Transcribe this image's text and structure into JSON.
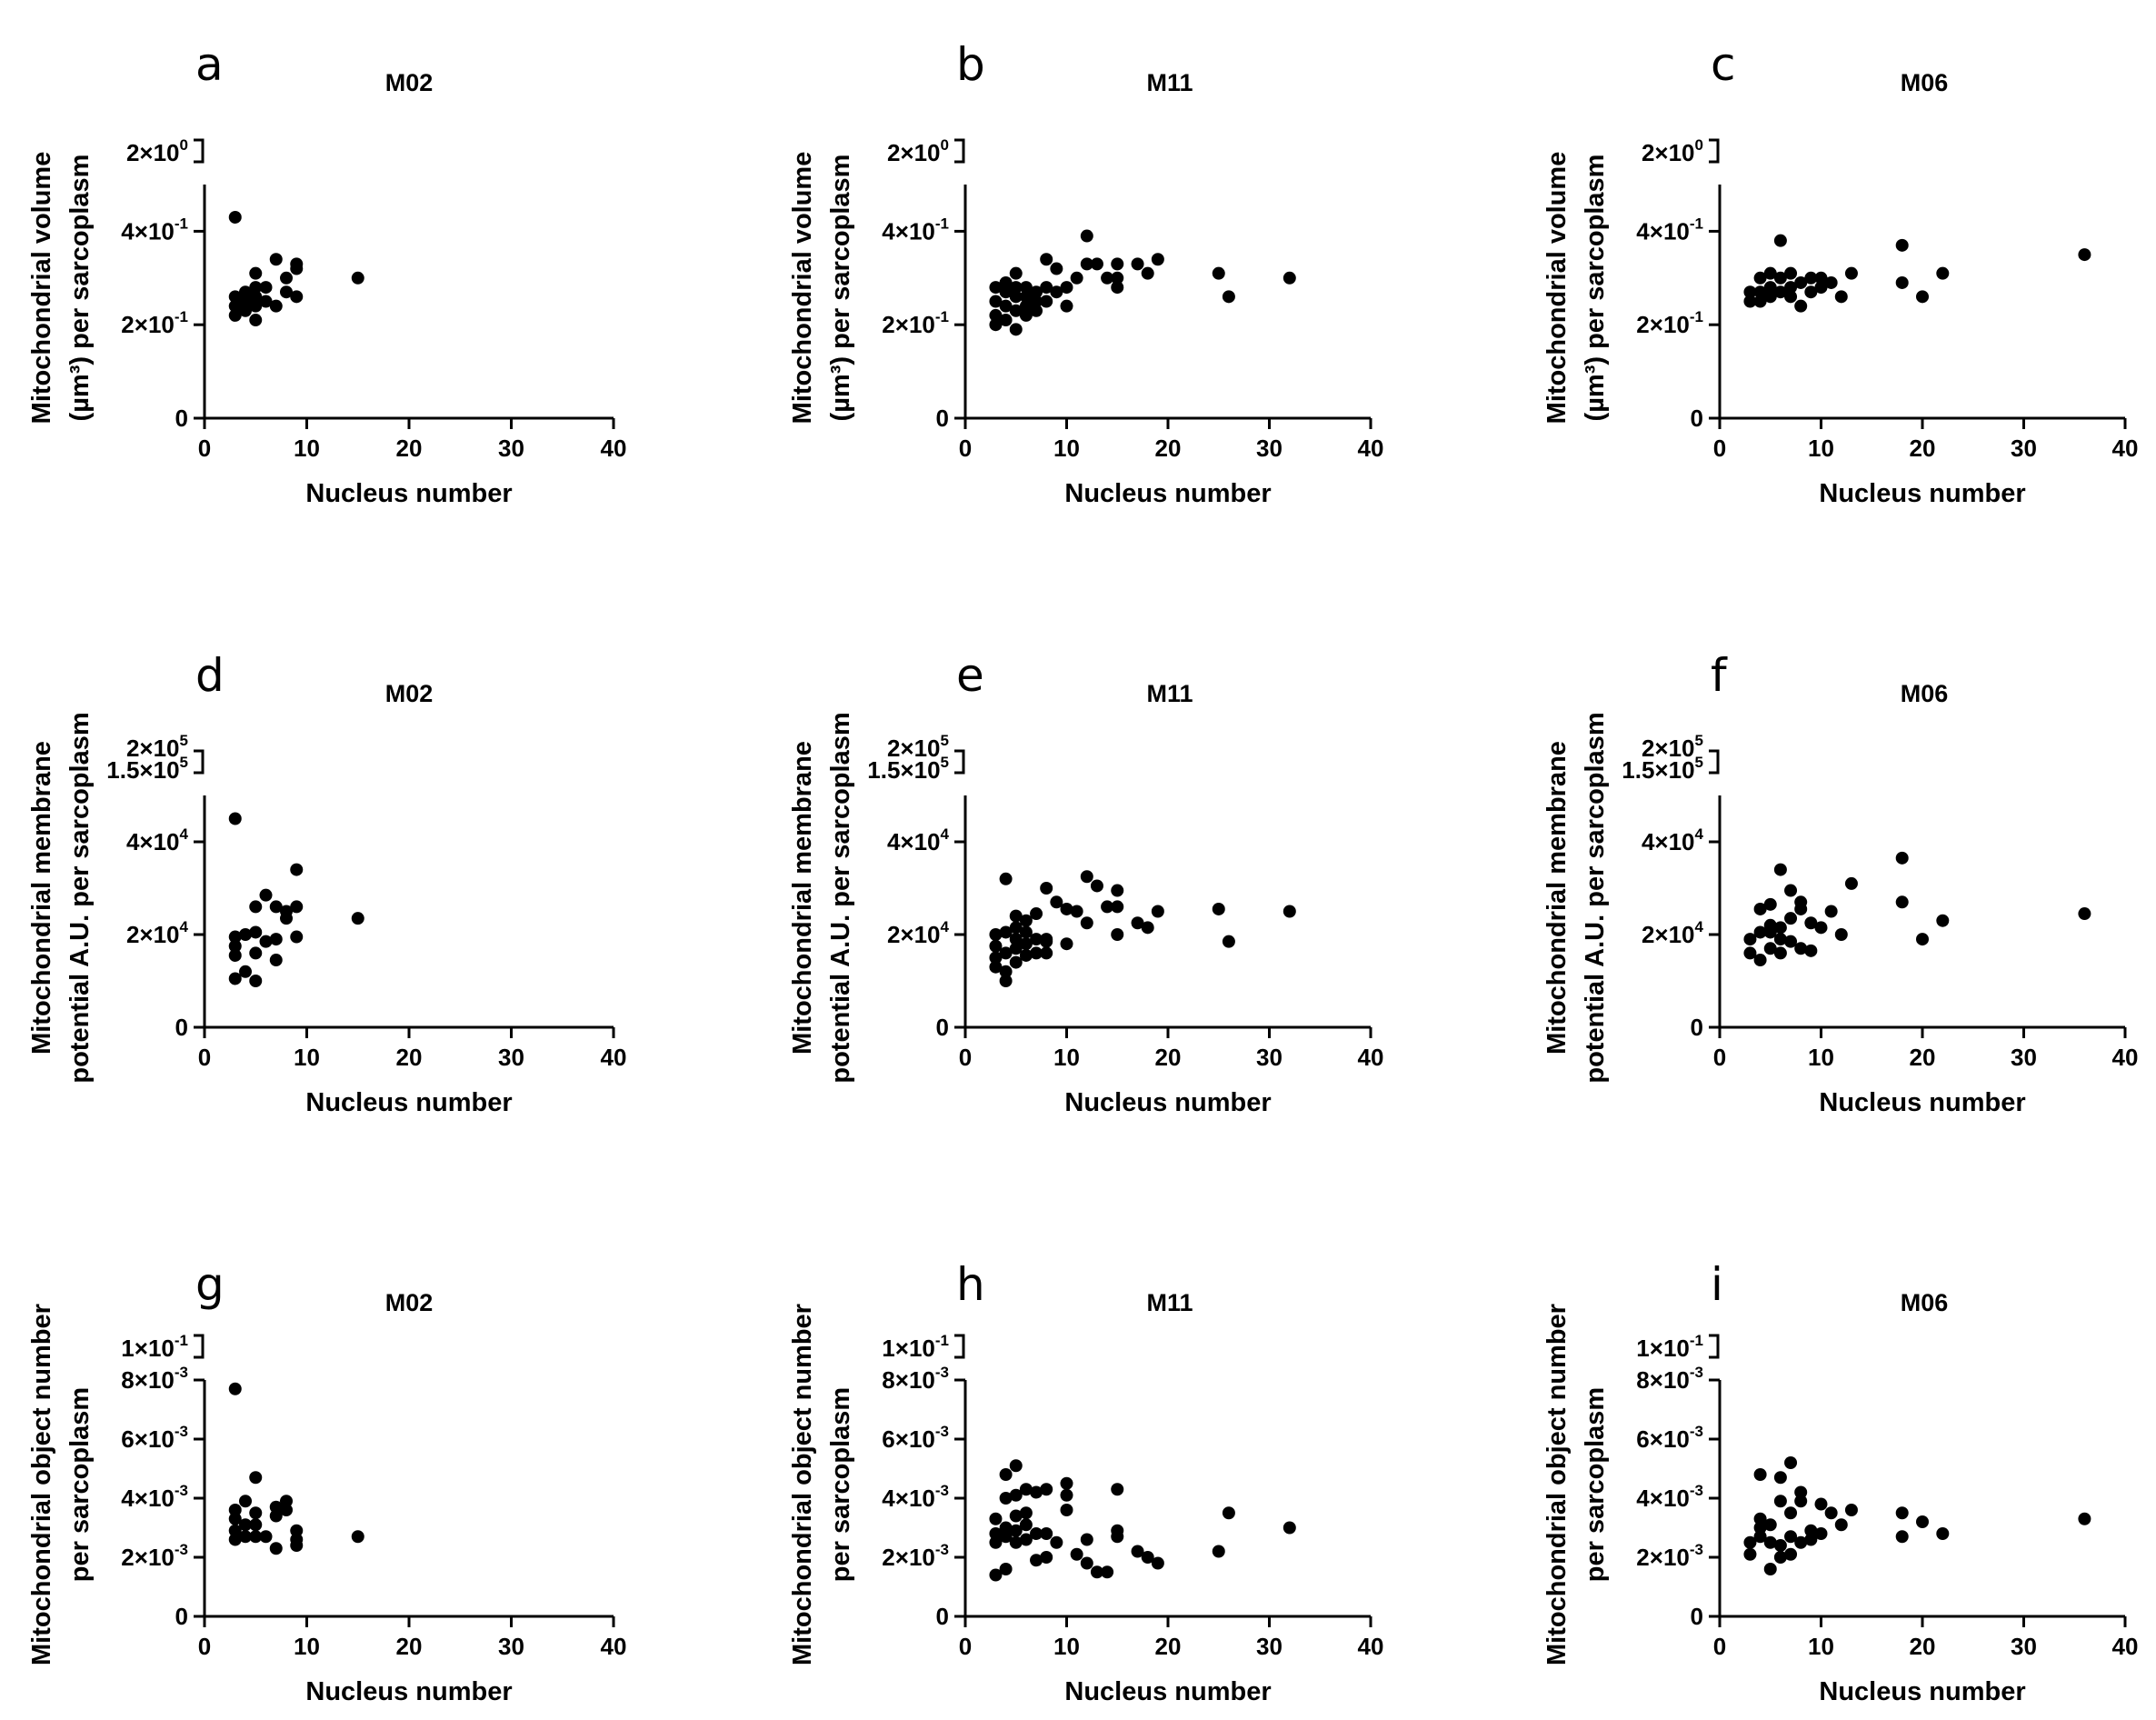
{
  "chart_data": [
    {
      "type": "scatter",
      "panel": "a",
      "title": "M02",
      "xlabel": "Nucleus number",
      "ylabel": [
        "Mitochondrial volume",
        "(µm³) per sarcoplasm"
      ],
      "xlim": [
        0,
        40
      ],
      "xticks": [
        "0",
        "10",
        "20",
        "30",
        "40"
      ],
      "ylim": [
        0,
        0.5
      ],
      "yticks": [
        {
          "value": 0,
          "label": "0"
        },
        {
          "value": 0.2,
          "label": "2×10",
          "exp": "-1"
        },
        {
          "value": 0.4,
          "label": "4×10",
          "exp": "-1"
        }
      ],
      "ybreak": {
        "label": "2×10",
        "exp": "0"
      },
      "x": [
        3,
        3,
        3,
        3,
        4,
        4,
        4,
        5,
        5,
        5,
        5,
        5,
        6,
        6,
        7,
        7,
        8,
        8,
        9,
        9,
        9,
        15
      ],
      "y": [
        0.22,
        0.24,
        0.26,
        0.43,
        0.23,
        0.25,
        0.27,
        0.21,
        0.24,
        0.26,
        0.28,
        0.31,
        0.25,
        0.28,
        0.24,
        0.34,
        0.27,
        0.3,
        0.26,
        0.32,
        0.33,
        0.3
      ]
    },
    {
      "type": "scatter",
      "panel": "b",
      "title": "M11",
      "xlabel": "Nucleus number",
      "ylabel": [
        "Mitochondrial volume",
        "(µm³) per sarcoplasm"
      ],
      "xlim": [
        0,
        40
      ],
      "xticks": [
        "0",
        "10",
        "20",
        "30",
        "40"
      ],
      "ylim": [
        0,
        0.5
      ],
      "yticks": [
        {
          "value": 0,
          "label": "0"
        },
        {
          "value": 0.2,
          "label": "2×10",
          "exp": "-1"
        },
        {
          "value": 0.4,
          "label": "4×10",
          "exp": "-1"
        }
      ],
      "ybreak": {
        "label": "2×10",
        "exp": "0"
      },
      "x": [
        3,
        3,
        3,
        3,
        4,
        4,
        4,
        4,
        5,
        5,
        5,
        5,
        5,
        6,
        6,
        6,
        6,
        7,
        7,
        7,
        8,
        8,
        8,
        9,
        9,
        10,
        10,
        11,
        12,
        12,
        13,
        14,
        15,
        15,
        15,
        17,
        18,
        19,
        25,
        26,
        32
      ],
      "y": [
        0.2,
        0.22,
        0.25,
        0.28,
        0.21,
        0.24,
        0.27,
        0.29,
        0.19,
        0.23,
        0.26,
        0.28,
        0.31,
        0.22,
        0.24,
        0.26,
        0.28,
        0.23,
        0.25,
        0.27,
        0.25,
        0.28,
        0.34,
        0.27,
        0.32,
        0.24,
        0.28,
        0.3,
        0.33,
        0.39,
        0.33,
        0.3,
        0.28,
        0.3,
        0.33,
        0.33,
        0.31,
        0.34,
        0.31,
        0.26,
        0.3
      ]
    },
    {
      "type": "scatter",
      "panel": "c",
      "title": "M06",
      "xlabel": "Nucleus number",
      "ylabel": [
        "Mitochondrial volume",
        "(µm³) per sarcoplasm"
      ],
      "xlim": [
        0,
        40
      ],
      "xticks": [
        "0",
        "10",
        "20",
        "30",
        "40"
      ],
      "ylim": [
        0,
        0.5
      ],
      "yticks": [
        {
          "value": 0,
          "label": "0"
        },
        {
          "value": 0.2,
          "label": "2×10",
          "exp": "-1"
        },
        {
          "value": 0.4,
          "label": "4×10",
          "exp": "-1"
        }
      ],
      "ybreak": {
        "label": "2×10",
        "exp": "0"
      },
      "x": [
        3,
        3,
        4,
        4,
        4,
        5,
        5,
        5,
        6,
        6,
        6,
        7,
        7,
        7,
        8,
        8,
        9,
        9,
        10,
        10,
        11,
        12,
        13,
        18,
        18,
        20,
        22,
        36
      ],
      "y": [
        0.25,
        0.27,
        0.25,
        0.27,
        0.3,
        0.26,
        0.28,
        0.31,
        0.27,
        0.3,
        0.38,
        0.26,
        0.28,
        0.31,
        0.24,
        0.29,
        0.27,
        0.3,
        0.28,
        0.3,
        0.29,
        0.26,
        0.31,
        0.29,
        0.37,
        0.26,
        0.31,
        0.35
      ]
    },
    {
      "type": "scatter",
      "panel": "d",
      "title": "M02",
      "xlabel": "Nucleus number",
      "ylabel": [
        "Mitochondrial membrane",
        "potential A.U. per sarcoplasm"
      ],
      "xlim": [
        0,
        40
      ],
      "xticks": [
        "0",
        "10",
        "20",
        "30",
        "40"
      ],
      "ylim": [
        0,
        50000
      ],
      "yticks": [
        {
          "value": 0,
          "label": "0"
        },
        {
          "value": 20000,
          "label": "2×10",
          "exp": "4"
        },
        {
          "value": 40000,
          "label": "4×10",
          "exp": "4"
        }
      ],
      "ybreak": {
        "label": "2×10",
        "exp": "5",
        "label2": "1.5×10",
        "exp2": "5"
      },
      "x": [
        3,
        3,
        3,
        3,
        3,
        4,
        4,
        5,
        5,
        5,
        5,
        6,
        6,
        7,
        7,
        7,
        8,
        8,
        9,
        9,
        9,
        15
      ],
      "y": [
        10500,
        15500,
        17500,
        19500,
        45000,
        20000,
        12000,
        10000,
        16000,
        20500,
        26000,
        18500,
        28500,
        14500,
        19000,
        26000,
        23500,
        25000,
        19500,
        26000,
        34000,
        23500
      ]
    },
    {
      "type": "scatter",
      "panel": "e",
      "title": "M11",
      "xlabel": "Nucleus number",
      "ylabel": [
        "Mitochondrial membrane",
        "potential A.U. per sarcoplasm"
      ],
      "xlim": [
        0,
        40
      ],
      "xticks": [
        "0",
        "10",
        "20",
        "30",
        "40"
      ],
      "ylim": [
        0,
        50000
      ],
      "yticks": [
        {
          "value": 0,
          "label": "0"
        },
        {
          "value": 20000,
          "label": "2×10",
          "exp": "4"
        },
        {
          "value": 40000,
          "label": "4×10",
          "exp": "4"
        }
      ],
      "ybreak": {
        "label": "2×10",
        "exp": "5",
        "label2": "1.5×10",
        "exp2": "5"
      },
      "x": [
        3,
        3,
        3,
        3,
        4,
        4,
        4,
        4,
        4,
        5,
        5,
        5,
        5,
        5,
        6,
        6,
        6,
        6,
        7,
        7,
        7,
        8,
        8,
        8,
        8,
        9,
        10,
        10,
        11,
        12,
        12,
        13,
        14,
        15,
        15,
        15,
        17,
        18,
        19,
        25,
        26,
        32
      ],
      "y": [
        13000,
        15000,
        17500,
        20000,
        10000,
        12000,
        16000,
        20500,
        32000,
        14000,
        17000,
        19000,
        21500,
        24000,
        15500,
        18000,
        20500,
        23000,
        16000,
        19000,
        24500,
        16000,
        18500,
        19000,
        30000,
        27000,
        18000,
        25500,
        25000,
        22500,
        32500,
        30500,
        26000,
        20000,
        26000,
        29500,
        22500,
        21500,
        25000,
        25500,
        18500,
        25000
      ]
    },
    {
      "type": "scatter",
      "panel": "f",
      "title": "M06",
      "xlabel": "Nucleus number",
      "ylabel": [
        "Mitochondrial membrane",
        "potential A.U. per sarcoplasm"
      ],
      "xlim": [
        0,
        40
      ],
      "xticks": [
        "0",
        "10",
        "20",
        "30",
        "40"
      ],
      "ylim": [
        0,
        50000
      ],
      "yticks": [
        {
          "value": 0,
          "label": "0"
        },
        {
          "value": 20000,
          "label": "2×10",
          "exp": "4"
        },
        {
          "value": 40000,
          "label": "4×10",
          "exp": "4"
        }
      ],
      "ybreak": {
        "label": "2×10",
        "exp": "5",
        "label2": "1.5×10",
        "exp2": "5"
      },
      "x": [
        3,
        3,
        4,
        4,
        4,
        5,
        5,
        5,
        5,
        6,
        6,
        6,
        6,
        7,
        7,
        7,
        8,
        8,
        8,
        9,
        9,
        10,
        11,
        12,
        13,
        18,
        18,
        20,
        22,
        36
      ],
      "y": [
        16000,
        19000,
        14500,
        20500,
        25500,
        17000,
        20500,
        22000,
        26500,
        16000,
        19000,
        21500,
        34000,
        18500,
        23500,
        29500,
        17000,
        25500,
        27000,
        16500,
        22500,
        21500,
        25000,
        20000,
        31000,
        36500,
        27000,
        19000,
        23000,
        24500
      ]
    },
    {
      "type": "scatter",
      "panel": "g",
      "title": "M02",
      "xlabel": "Nucleus number",
      "ylabel": [
        "Mitochondrial object number",
        "per sarcoplasm"
      ],
      "xlim": [
        0,
        40
      ],
      "xticks": [
        "0",
        "10",
        "20",
        "30",
        "40"
      ],
      "ylim": [
        0,
        0.008
      ],
      "yticks": [
        {
          "value": 0,
          "label": "0"
        },
        {
          "value": 0.002,
          "label": "2×10",
          "exp": "-3"
        },
        {
          "value": 0.004,
          "label": "4×10",
          "exp": "-3"
        },
        {
          "value": 0.006,
          "label": "6×10",
          "exp": "-3"
        },
        {
          "value": 0.008,
          "label": "8×10",
          "exp": "-3"
        }
      ],
      "ybreak": {
        "label": "1×10",
        "exp": "-1"
      },
      "x": [
        3,
        3,
        3,
        3,
        3,
        4,
        4,
        4,
        5,
        5,
        5,
        5,
        6,
        7,
        7,
        7,
        8,
        8,
        9,
        9,
        9,
        15
      ],
      "y": [
        0.0026,
        0.0029,
        0.0033,
        0.0036,
        0.0077,
        0.0027,
        0.0031,
        0.0039,
        0.0027,
        0.0031,
        0.0035,
        0.0047,
        0.0027,
        0.0023,
        0.0034,
        0.0037,
        0.0036,
        0.0039,
        0.0024,
        0.0026,
        0.0029,
        0.0027
      ]
    },
    {
      "type": "scatter",
      "panel": "h",
      "title": "M11",
      "xlabel": "Nucleus number",
      "ylabel": [
        "Mitochondrial object number",
        "per sarcoplasm"
      ],
      "xlim": [
        0,
        40
      ],
      "xticks": [
        "0",
        "10",
        "20",
        "30",
        "40"
      ],
      "ylim": [
        0,
        0.008
      ],
      "yticks": [
        {
          "value": 0,
          "label": "0"
        },
        {
          "value": 0.002,
          "label": "2×10",
          "exp": "-3"
        },
        {
          "value": 0.004,
          "label": "4×10",
          "exp": "-3"
        },
        {
          "value": 0.006,
          "label": "6×10",
          "exp": "-3"
        },
        {
          "value": 0.008,
          "label": "8×10",
          "exp": "-3"
        }
      ],
      "ybreak": {
        "label": "1×10",
        "exp": "-1"
      },
      "x": [
        3,
        3,
        3,
        3,
        4,
        4,
        4,
        4,
        4,
        5,
        5,
        5,
        5,
        5,
        6,
        6,
        6,
        6,
        7,
        7,
        7,
        8,
        8,
        8,
        9,
        10,
        10,
        10,
        11,
        12,
        12,
        13,
        14,
        15,
        15,
        15,
        17,
        18,
        19,
        25,
        26,
        32
      ],
      "y": [
        0.0014,
        0.0025,
        0.0028,
        0.0033,
        0.0016,
        0.0027,
        0.003,
        0.004,
        0.0048,
        0.0025,
        0.0029,
        0.0034,
        0.0041,
        0.0051,
        0.0026,
        0.0031,
        0.0035,
        0.0043,
        0.0019,
        0.0028,
        0.0042,
        0.002,
        0.0028,
        0.0043,
        0.0025,
        0.0036,
        0.0041,
        0.0045,
        0.0021,
        0.0018,
        0.0026,
        0.0015,
        0.0015,
        0.0027,
        0.0029,
        0.0043,
        0.0022,
        0.002,
        0.0018,
        0.0022,
        0.0035,
        0.003
      ]
    },
    {
      "type": "scatter",
      "panel": "i",
      "title": "M06",
      "xlabel": "Nucleus number",
      "ylabel": [
        "Mitochondrial object number",
        "per sarcoplasm"
      ],
      "xlim": [
        0,
        40
      ],
      "xticks": [
        "0",
        "10",
        "20",
        "30",
        "40"
      ],
      "ylim": [
        0,
        0.008
      ],
      "yticks": [
        {
          "value": 0,
          "label": "0"
        },
        {
          "value": 0.002,
          "label": "2×10",
          "exp": "-3"
        },
        {
          "value": 0.004,
          "label": "4×10",
          "exp": "-3"
        },
        {
          "value": 0.006,
          "label": "6×10",
          "exp": "-3"
        },
        {
          "value": 0.008,
          "label": "8×10",
          "exp": "-3"
        }
      ],
      "ybreak": {
        "label": "1×10",
        "exp": "-1"
      },
      "x": [
        3,
        3,
        4,
        4,
        4,
        4,
        5,
        5,
        5,
        6,
        6,
        6,
        6,
        7,
        7,
        7,
        7,
        8,
        8,
        8,
        9,
        9,
        10,
        10,
        11,
        12,
        13,
        18,
        18,
        20,
        22,
        36
      ],
      "y": [
        0.0021,
        0.0025,
        0.0027,
        0.003,
        0.0033,
        0.0048,
        0.0016,
        0.0025,
        0.0031,
        0.002,
        0.0024,
        0.0039,
        0.0047,
        0.0021,
        0.0027,
        0.0035,
        0.0052,
        0.0025,
        0.0039,
        0.0042,
        0.0026,
        0.0029,
        0.0028,
        0.0038,
        0.0035,
        0.0031,
        0.0036,
        0.0027,
        0.0035,
        0.0032,
        0.0028,
        0.0033
      ]
    }
  ]
}
